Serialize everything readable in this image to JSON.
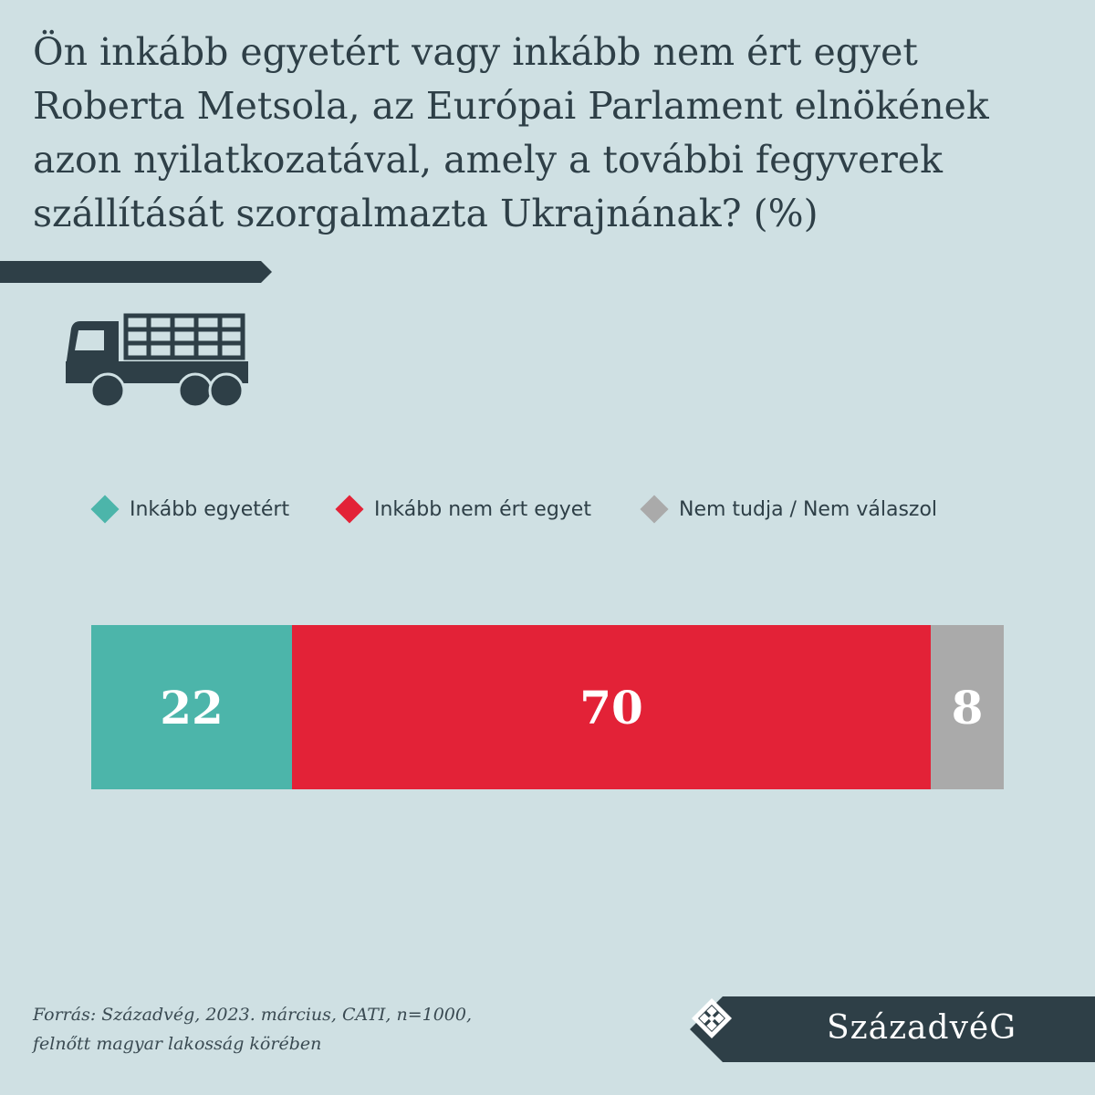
{
  "title_lines": [
    "Ön inkább egyetért vagy inkább nem ért egyet",
    "Roberta Metsola, az Európai Parlament elnökének",
    "azon nyilatkozatával, amely a további fegyverek",
    "szállítását szorgalmazta Ukrajnának? (%)"
  ],
  "icon": "truck-icon",
  "colors": {
    "background": "#cfe0e3",
    "dark": "#2e3f47",
    "agree": "#4cb5aa",
    "disagree": "#e32237",
    "unknown": "#aaaaaa"
  },
  "chart_data": {
    "type": "bar",
    "orientation": "horizontal-stacked",
    "title": "Ön inkább egyetért vagy inkább nem ért egyet Roberta Metsola, az Európai Parlament elnökének azon nyilatkozatával, amely a további fegyverek szállítását szorgalmazta Ukrajnának? (%)",
    "legend_position": "top",
    "series": [
      {
        "name": "Inkább egyetért",
        "values": [
          22
        ],
        "color": "#4cb5aa"
      },
      {
        "name": "Inkább nem ért egyet",
        "values": [
          70
        ],
        "color": "#e32237"
      },
      {
        "name": "Nem tudja / Nem válaszol",
        "values": [
          8
        ],
        "color": "#aaaaaa"
      }
    ],
    "xlim": [
      0,
      100
    ]
  },
  "source_lines": [
    "Forrás: Századvég, 2023. március, CATI, n=1000,",
    "felnőtt magyar lakosság körében"
  ],
  "logo": {
    "text": "SzázadvéG",
    "icon": "diamond-emblem-icon"
  }
}
